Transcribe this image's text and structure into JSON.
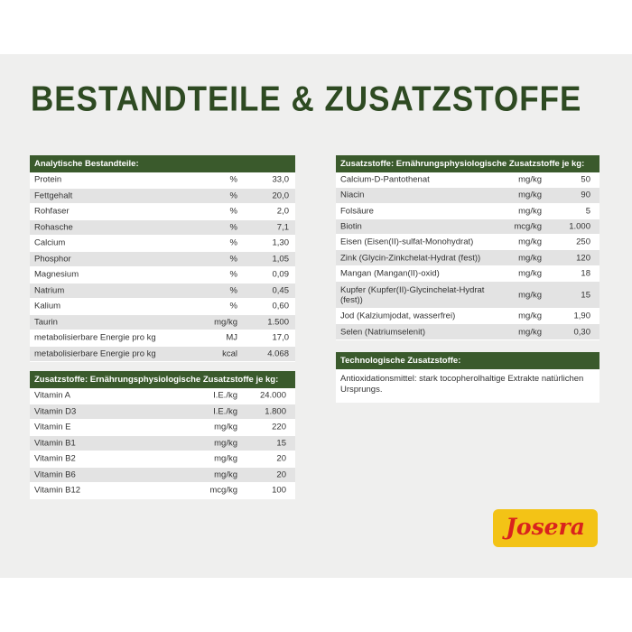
{
  "title": "BESTANDTEILE & ZUSATZSTOFFE",
  "analytic": {
    "header": "Analytische Bestandteile:",
    "rows": [
      [
        "Protein",
        "%",
        "33,0"
      ],
      [
        "Fettgehalt",
        "%",
        "20,0"
      ],
      [
        "Rohfaser",
        "%",
        "2,0"
      ],
      [
        "Rohasche",
        "%",
        "7,1"
      ],
      [
        "Calcium",
        "%",
        "1,30"
      ],
      [
        "Phosphor",
        "%",
        "1,05"
      ],
      [
        "Magnesium",
        "%",
        "0,09"
      ],
      [
        "Natrium",
        "%",
        "0,45"
      ],
      [
        "Kalium",
        "%",
        "0,60"
      ],
      [
        "Taurin",
        "mg/kg",
        "1.500"
      ],
      [
        "metabolisierbare Energie pro kg",
        "MJ",
        "17,0"
      ],
      [
        "metabolisierbare Energie pro kg",
        "kcal",
        "4.068"
      ]
    ]
  },
  "vitamins": {
    "header": "Zusatzstoffe: Ernährungsphysiologische Zusatzstoffe je kg:",
    "rows": [
      [
        "Vitamin A",
        "I.E./kg",
        "24.000"
      ],
      [
        "Vitamin D3",
        "I.E./kg",
        "1.800"
      ],
      [
        "Vitamin E",
        "mg/kg",
        "220"
      ],
      [
        "Vitamin B1",
        "mg/kg",
        "15"
      ],
      [
        "Vitamin B2",
        "mg/kg",
        "20"
      ],
      [
        "Vitamin B6",
        "mg/kg",
        "20"
      ],
      [
        "Vitamin B12",
        "mcg/kg",
        "100"
      ]
    ]
  },
  "minerals": {
    "header": "Zusatzstoffe: Ernährungsphysiologische Zusatzstoffe je kg:",
    "rows": [
      [
        "Calcium-D-Pantothenat",
        "mg/kg",
        "50"
      ],
      [
        "Niacin",
        "mg/kg",
        "90"
      ],
      [
        "Folsäure",
        "mg/kg",
        "5"
      ],
      [
        "Biotin",
        "mcg/kg",
        "1.000"
      ],
      [
        "Eisen (Eisen(II)-sulfat-Monohydrat)",
        "mg/kg",
        "250"
      ],
      [
        "Zink (Glycin-Zinkchelat-Hydrat (fest))",
        "mg/kg",
        "120"
      ],
      [
        "Mangan (Mangan(II)-oxid)",
        "mg/kg",
        "18"
      ],
      [
        "Kupfer (Kupfer(II)-Glycinchelat-Hydrat (fest))",
        "mg/kg",
        "15"
      ],
      [
        "Jod (Kalziumjodat, wasserfrei)",
        "mg/kg",
        "1,90"
      ],
      [
        "Selen (Natriumselenit)",
        "mg/kg",
        "0,30"
      ]
    ]
  },
  "technological": {
    "header": "Technologische Zusatzstoffe:",
    "text": "Antioxidationsmittel: stark tocopherolhaltige Extrakte natürlichen Ursprungs."
  },
  "logo": "Josera"
}
